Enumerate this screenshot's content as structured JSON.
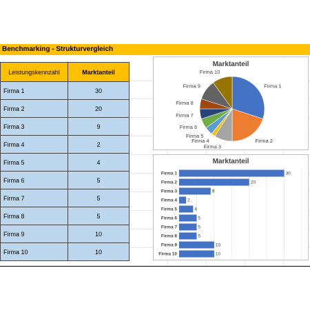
{
  "sheet": {
    "title": "Benchmarking - Strukturvergleich",
    "colors": {
      "header_fill": "#ffc000",
      "cell_fill": "#bdd7ee"
    }
  },
  "table": {
    "headers": [
      "Leistungskennzahl",
      "Marktanteil"
    ],
    "rows": [
      {
        "label": "Firma 1",
        "value": "30"
      },
      {
        "label": "Firma 2",
        "value": "20"
      },
      {
        "label": "Firma 3",
        "value": "9"
      },
      {
        "label": "Firma 4",
        "value": "2"
      },
      {
        "label": "Firma 5",
        "value": "4"
      },
      {
        "label": "Firma 6",
        "value": "5"
      },
      {
        "label": "Firma 7",
        "value": "5"
      },
      {
        "label": "Firma 8",
        "value": "5"
      },
      {
        "label": "Firma 9",
        "value": "10"
      },
      {
        "label": "Firma 10",
        "value": "10"
      }
    ]
  },
  "chart_data": [
    {
      "type": "pie",
      "title": "Marktanteil",
      "categories": [
        "Firma 1",
        "Firma 2",
        "Firma 3",
        "Firma 4",
        "Firma 5",
        "Firma 6",
        "Firma 7",
        "Firma 8",
        "Firma 9",
        "Firma 10"
      ],
      "values": [
        30,
        20,
        9,
        2,
        4,
        5,
        5,
        5,
        10,
        10
      ],
      "colors": [
        "#4472c4",
        "#ed7d31",
        "#a5a5a5",
        "#ffc000",
        "#5b9bd5",
        "#70ad47",
        "#264478",
        "#9e480e",
        "#636363",
        "#997300"
      ],
      "legend": "none",
      "data_labels": "category names outside"
    },
    {
      "type": "bar",
      "orientation": "horizontal",
      "title": "Marktanteil",
      "categories": [
        "Firma 1",
        "Firma 2",
        "Firma 3",
        "Firma 4",
        "Firma 5",
        "Firma 6",
        "Firma 7",
        "Firma 8",
        "Firma 9",
        "Firma 10"
      ],
      "values": [
        30,
        20,
        9,
        2,
        4,
        5,
        5,
        5,
        10,
        10
      ],
      "xlim": [
        0,
        35
      ],
      "color": "#4472c4",
      "grid": true,
      "data_labels": "values"
    }
  ]
}
